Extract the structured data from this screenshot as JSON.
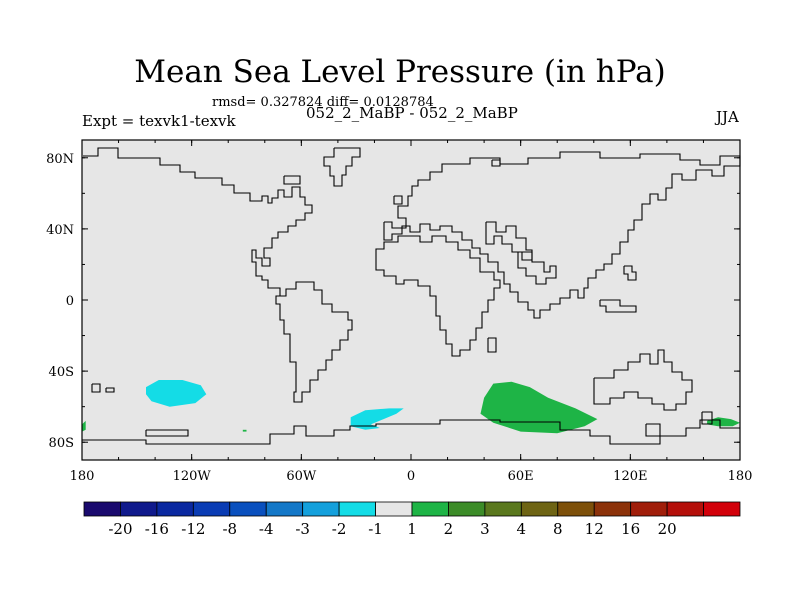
{
  "chart_data": {
    "type": "heatmap",
    "title": "Mean Sea Level Pressure (in hPa)",
    "stats_line": "rmsd= 0.327824 diff= 0.0128784",
    "left_label": "Expt = texvk1-texvk",
    "center_label": "052_2_MaBP - 052_2_MaBP",
    "right_label": "JJA",
    "xlim": [
      -180,
      180
    ],
    "ylim": [
      -90,
      90
    ],
    "x_ticks": [
      {
        "value": -180,
        "label": "180"
      },
      {
        "value": -120,
        "label": "120W"
      },
      {
        "value": -60,
        "label": "60W"
      },
      {
        "value": 0,
        "label": "0"
      },
      {
        "value": 60,
        "label": "60E"
      },
      {
        "value": 120,
        "label": "120E"
      },
      {
        "value": 180,
        "label": "180"
      }
    ],
    "y_ticks": [
      {
        "value": 80,
        "label": "80N"
      },
      {
        "value": 40,
        "label": "40N"
      },
      {
        "value": 0,
        "label": "0"
      },
      {
        "value": -40,
        "label": "40S"
      },
      {
        "value": -80,
        "label": "80S"
      }
    ],
    "colorbar": {
      "colors": [
        "#1a0a6e",
        "#101a8c",
        "#0a28a0",
        "#0a3cb4",
        "#0a50be",
        "#1478c8",
        "#14a0dc",
        "#14dce6",
        "#e6e6e6",
        "#1eb446",
        "#3c8c28",
        "#5a781e",
        "#6e6414",
        "#7d500a",
        "#8c320a",
        "#a01e0a",
        "#b40f0a",
        "#d2000a"
      ],
      "levels": [
        "-20",
        "-16",
        "-12",
        "-8",
        "-4",
        "-3",
        "-2",
        "-1",
        "1",
        "2",
        "3",
        "4",
        "8",
        "12",
        "16",
        "20"
      ]
    },
    "anomaly_regions": [
      {
        "name": "south-pacific-negative",
        "color": "#14dce6",
        "points": [
          [
            -145,
            -49
          ],
          [
            -138,
            -45
          ],
          [
            -125,
            -45
          ],
          [
            -115,
            -48
          ],
          [
            -112,
            -53
          ],
          [
            -118,
            -58
          ],
          [
            -132,
            -60
          ],
          [
            -142,
            -57
          ],
          [
            -145,
            -53
          ]
        ]
      },
      {
        "name": "south-atlantic-negative",
        "color": "#14dce6",
        "points": [
          [
            -33,
            -66
          ],
          [
            -25,
            -62
          ],
          [
            -12,
            -61
          ],
          [
            -4,
            -61
          ],
          [
            -8,
            -64
          ],
          [
            -15,
            -67
          ],
          [
            -22,
            -70
          ],
          [
            -17,
            -72
          ],
          [
            -25,
            -73
          ],
          [
            -33,
            -71
          ]
        ]
      },
      {
        "name": "south-indian-positive",
        "color": "#1eb446",
        "points": [
          [
            45,
            -47
          ],
          [
            55,
            -46
          ],
          [
            65,
            -49
          ],
          [
            75,
            -55
          ],
          [
            90,
            -61
          ],
          [
            102,
            -67
          ],
          [
            95,
            -71
          ],
          [
            80,
            -75
          ],
          [
            60,
            -74
          ],
          [
            45,
            -69
          ],
          [
            38,
            -64
          ],
          [
            40,
            -55
          ]
        ]
      },
      {
        "name": "ross-positive",
        "color": "#1eb446",
        "points": [
          [
            162,
            -68
          ],
          [
            168,
            -66
          ],
          [
            175,
            -67
          ],
          [
            180,
            -69
          ],
          [
            176,
            -71
          ],
          [
            168,
            -71
          ],
          [
            162,
            -70
          ]
        ]
      },
      {
        "name": "date-line-positive",
        "color": "#1eb446",
        "points": [
          [
            -180,
            -70
          ],
          [
            -178,
            -68
          ],
          [
            -178,
            -73
          ],
          [
            -180,
            -74
          ]
        ]
      },
      {
        "name": "small-positive",
        "color": "#1eb446",
        "points": [
          [
            -92,
            -73
          ],
          [
            -90,
            -73
          ],
          [
            -90,
            -74
          ],
          [
            -92,
            -74
          ]
        ]
      }
    ]
  }
}
